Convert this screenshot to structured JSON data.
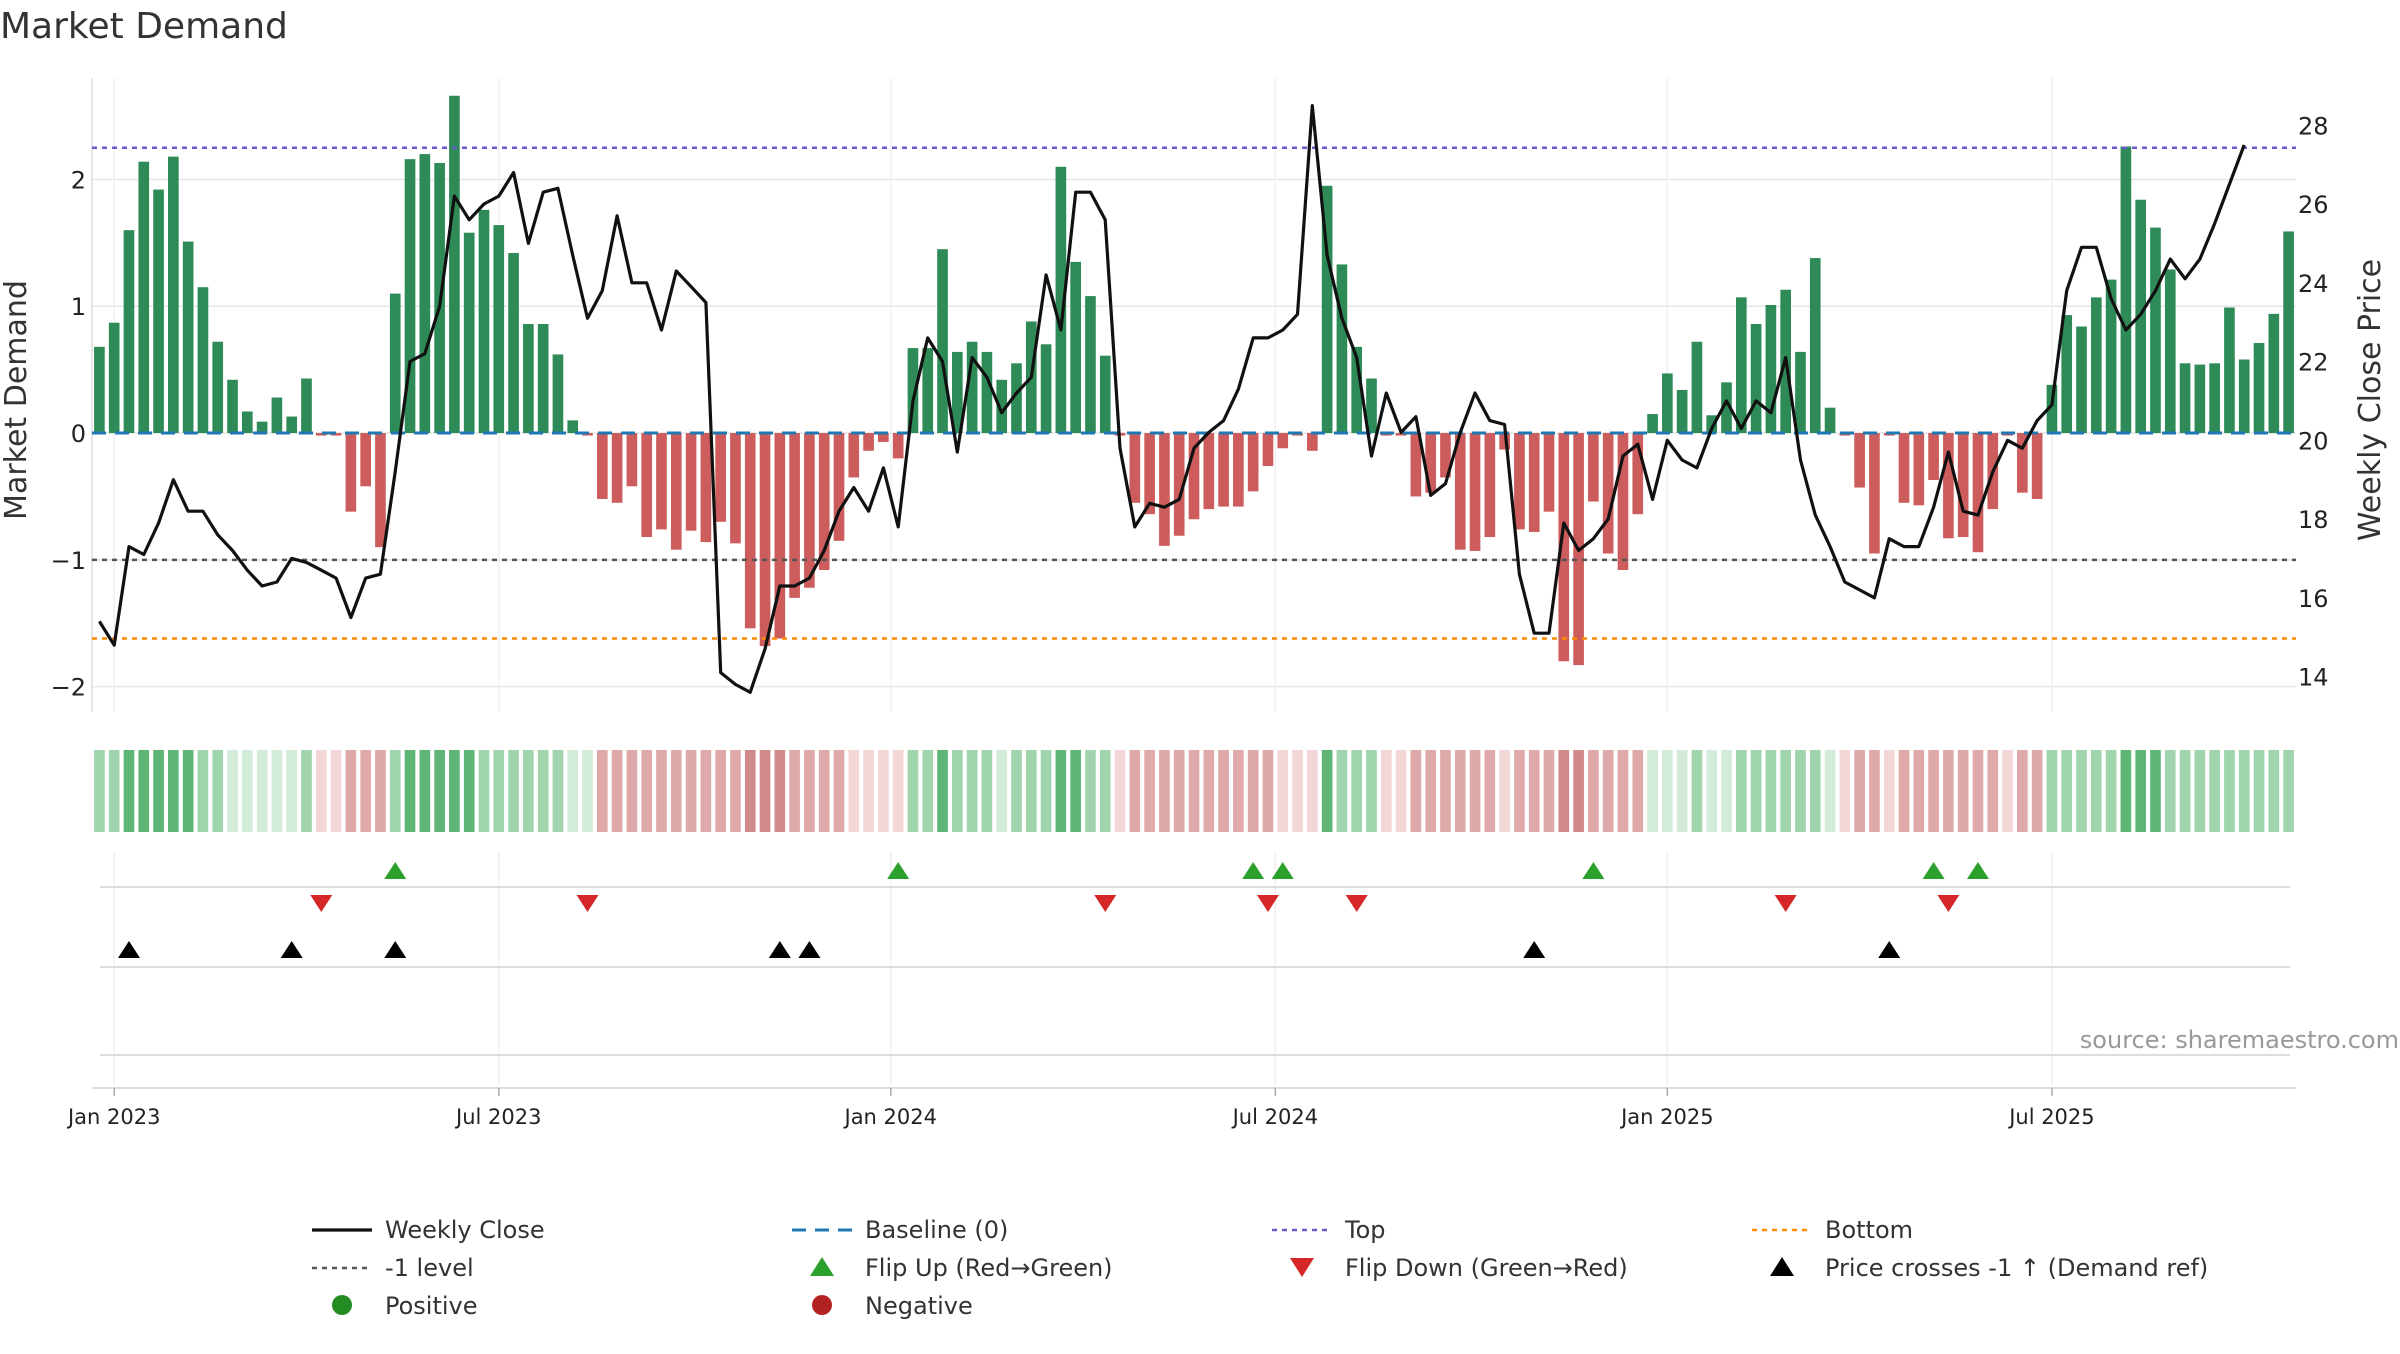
{
  "chart_data": {
    "type": "bar+line",
    "title": "Market Demand",
    "ylabel_left": "Market Demand",
    "ylabel_right": "Weekly Close Price",
    "left_ylim": [
      -2.2,
      2.8
    ],
    "left_ticks": [
      2,
      1,
      0,
      -1,
      -2
    ],
    "left_tick_labels": [
      "2",
      "1",
      "0",
      "−1",
      "−2"
    ],
    "right_ylim": [
      13.1,
      29.2
    ],
    "right_ticks": [
      28,
      26,
      24,
      22,
      20,
      18,
      16,
      14
    ],
    "right_tick_labels": [
      "28",
      "26",
      "24",
      "22",
      "20",
      "18",
      "16",
      "14"
    ],
    "x_ticks": [
      {
        "label": "Jan 2023",
        "week": 1
      },
      {
        "label": "Jul 2023",
        "week": 27
      },
      {
        "label": "Jan 2024",
        "week": 53.5
      },
      {
        "label": "Jul 2024",
        "week": 79.5
      },
      {
        "label": "Jan 2025",
        "week": 106
      },
      {
        "label": "Jul 2025",
        "week": 132
      }
    ],
    "reference_lines": {
      "top": 2.25,
      "bottom": -1.62,
      "minus_one": -1.0,
      "baseline": 0
    },
    "demand": [
      0.68,
      0.87,
      1.6,
      2.14,
      1.92,
      2.18,
      1.51,
      1.15,
      0.72,
      0.42,
      0.17,
      0.09,
      0.28,
      0.13,
      0.43,
      -0.02,
      -0.02,
      -0.62,
      -0.42,
      -0.9,
      1.1,
      2.16,
      2.2,
      2.13,
      2.66,
      1.58,
      1.76,
      1.64,
      1.42,
      0.86,
      0.86,
      0.62,
      0.1,
      -0.02,
      -0.52,
      -0.55,
      -0.42,
      -0.82,
      -0.76,
      -0.92,
      -0.77,
      -0.86,
      -0.7,
      -0.87,
      -1.54,
      -1.68,
      -1.62,
      -1.3,
      -1.22,
      -1.08,
      -0.85,
      -0.35,
      -0.14,
      -0.07,
      -0.2,
      0.67,
      0.67,
      1.45,
      0.64,
      0.72,
      0.64,
      0.42,
      0.55,
      0.88,
      0.7,
      2.1,
      1.35,
      1.08,
      0.61,
      -0.02,
      -0.55,
      -0.64,
      -0.89,
      -0.81,
      -0.68,
      -0.6,
      -0.58,
      -0.58,
      -0.46,
      -0.26,
      -0.12,
      -0.02,
      -0.14,
      1.95,
      1.33,
      0.68,
      0.43,
      -0.02,
      -0.02,
      -0.5,
      -0.47,
      -0.35,
      -0.92,
      -0.93,
      -0.82,
      -0.13,
      -0.76,
      -0.78,
      -0.62,
      -1.8,
      -1.83,
      -0.54,
      -0.95,
      -1.08,
      -0.64,
      0.15,
      0.47,
      0.34,
      0.72,
      0.14,
      0.4,
      1.07,
      0.86,
      1.01,
      1.13,
      0.64,
      1.38,
      0.2,
      -0.02,
      -0.43,
      -0.95,
      -0.02,
      -0.55,
      -0.57,
      -0.37,
      -0.83,
      -0.82,
      -0.94,
      -0.6,
      -0.02,
      -0.47,
      -0.52,
      0.38,
      0.93,
      0.84,
      1.07,
      1.21,
      2.26,
      1.84,
      1.62,
      1.29,
      0.55,
      0.54,
      0.55,
      0.99,
      0.58,
      0.71,
      0.94,
      1.59
    ],
    "price": [
      15.4,
      14.8,
      17.3,
      17.1,
      17.9,
      19.0,
      18.2,
      18.2,
      17.6,
      17.2,
      16.7,
      16.3,
      16.4,
      17.0,
      16.9,
      16.7,
      16.5,
      15.5,
      16.5,
      16.6,
      19.2,
      22.0,
      22.2,
      23.4,
      26.2,
      25.6,
      26.0,
      26.2,
      26.8,
      25.0,
      26.3,
      26.4,
      24.7,
      23.1,
      23.8,
      25.7,
      24.0,
      24.0,
      22.8,
      24.3,
      23.9,
      23.5,
      14.1,
      13.8,
      13.6,
      14.7,
      16.3,
      16.3,
      16.5,
      17.2,
      18.2,
      18.8,
      18.2,
      19.3,
      17.8,
      21.0,
      22.6,
      22.0,
      19.7,
      22.1,
      21.6,
      20.7,
      21.2,
      21.6,
      24.2,
      22.8,
      26.3,
      26.3,
      25.6,
      19.8,
      17.8,
      18.4,
      18.3,
      18.5,
      19.8,
      20.2,
      20.5,
      21.3,
      22.6,
      22.6,
      22.8,
      23.2,
      28.5,
      24.7,
      23.1,
      22.1,
      19.6,
      21.2,
      20.2,
      20.6,
      18.6,
      18.9,
      20.2,
      21.2,
      20.5,
      20.4,
      16.6,
      15.1,
      15.1,
      17.9,
      17.2,
      17.5,
      18.0,
      19.6,
      19.9,
      18.5,
      20.0,
      19.5,
      19.3,
      20.3,
      21.0,
      20.3,
      21.0,
      20.7,
      22.1,
      19.5,
      18.1,
      17.3,
      16.4,
      16.2,
      16.0,
      17.5,
      17.3,
      17.3,
      18.3,
      19.7,
      18.2,
      18.1,
      19.2,
      20.0,
      19.8,
      20.5,
      20.9,
      23.8,
      24.9,
      24.9,
      23.6,
      22.8,
      23.2,
      23.8,
      24.6,
      24.1,
      24.6,
      25.5,
      26.5,
      27.5
    ],
    "regime_strip": [
      2,
      2,
      3,
      3,
      3,
      3,
      3,
      2,
      2,
      1,
      1,
      1,
      1,
      1,
      2,
      -1,
      -1,
      -2,
      -2,
      -2,
      2,
      3,
      3,
      3,
      3,
      3,
      2,
      2,
      2,
      2,
      2,
      2,
      1,
      1,
      -2,
      -2,
      -2,
      -2,
      -2,
      -2,
      -2,
      -2,
      -2,
      -2,
      -3,
      -3,
      -3,
      -2,
      -2,
      -2,
      -2,
      -1,
      -1,
      -1,
      -1,
      2,
      2,
      3,
      2,
      2,
      2,
      1,
      2,
      2,
      2,
      3,
      3,
      2,
      2,
      -1,
      -2,
      -2,
      -2,
      -2,
      -2,
      -2,
      -2,
      -2,
      -2,
      -2,
      -1,
      -1,
      -1,
      3,
      2,
      2,
      2,
      -1,
      -1,
      -2,
      -2,
      -2,
      -2,
      -2,
      -2,
      -1,
      -2,
      -2,
      -2,
      -3,
      -3,
      -2,
      -2,
      -2,
      -2,
      1,
      1,
      1,
      2,
      1,
      1,
      2,
      2,
      2,
      2,
      2,
      2,
      1,
      -1,
      -2,
      -2,
      -1,
      -2,
      -2,
      -2,
      -2,
      -2,
      -2,
      -2,
      -1,
      -2,
      -2,
      2,
      2,
      2,
      2,
      2,
      3,
      3,
      3,
      2,
      2,
      2,
      2,
      2,
      2,
      2,
      2,
      2
    ],
    "events": {
      "flip_up_weeks": [
        20,
        54,
        78,
        80,
        101,
        124,
        127
      ],
      "flip_down_weeks": [
        15,
        33,
        68,
        79,
        85,
        114,
        125
      ],
      "price_cross_minus1_weeks": [
        2,
        13,
        20,
        46,
        48,
        97,
        121
      ]
    },
    "legend": {
      "weekly_close": "Weekly Close",
      "baseline": "Baseline (0)",
      "top": "Top",
      "bottom": "Bottom",
      "minus_one": "-1 level",
      "flip_up": "Flip Up (Red→Green)",
      "flip_down": "Flip Down (Green→Red)",
      "price_cross": "Price crosses -1 ↑ (Demand ref)",
      "positive": "Positive",
      "negative": "Negative"
    },
    "source": "source: sharemaestro.com",
    "colors": {
      "positive_bar": "#2e8b57",
      "negative_bar": "#cd5c5c",
      "price_line": "#111111",
      "baseline": "#1f77b4",
      "top_line": "#6a5acd",
      "bottom_line": "#ff8c00",
      "minus_one_line": "#555555",
      "flip_up": "#2ca02c",
      "flip_down": "#d62728",
      "price_cross": "#000000",
      "positive_dot": "#228b22",
      "negative_dot": "#b22222",
      "grid": "#e6e6e6"
    },
    "legend_placement": "bottom-center"
  }
}
